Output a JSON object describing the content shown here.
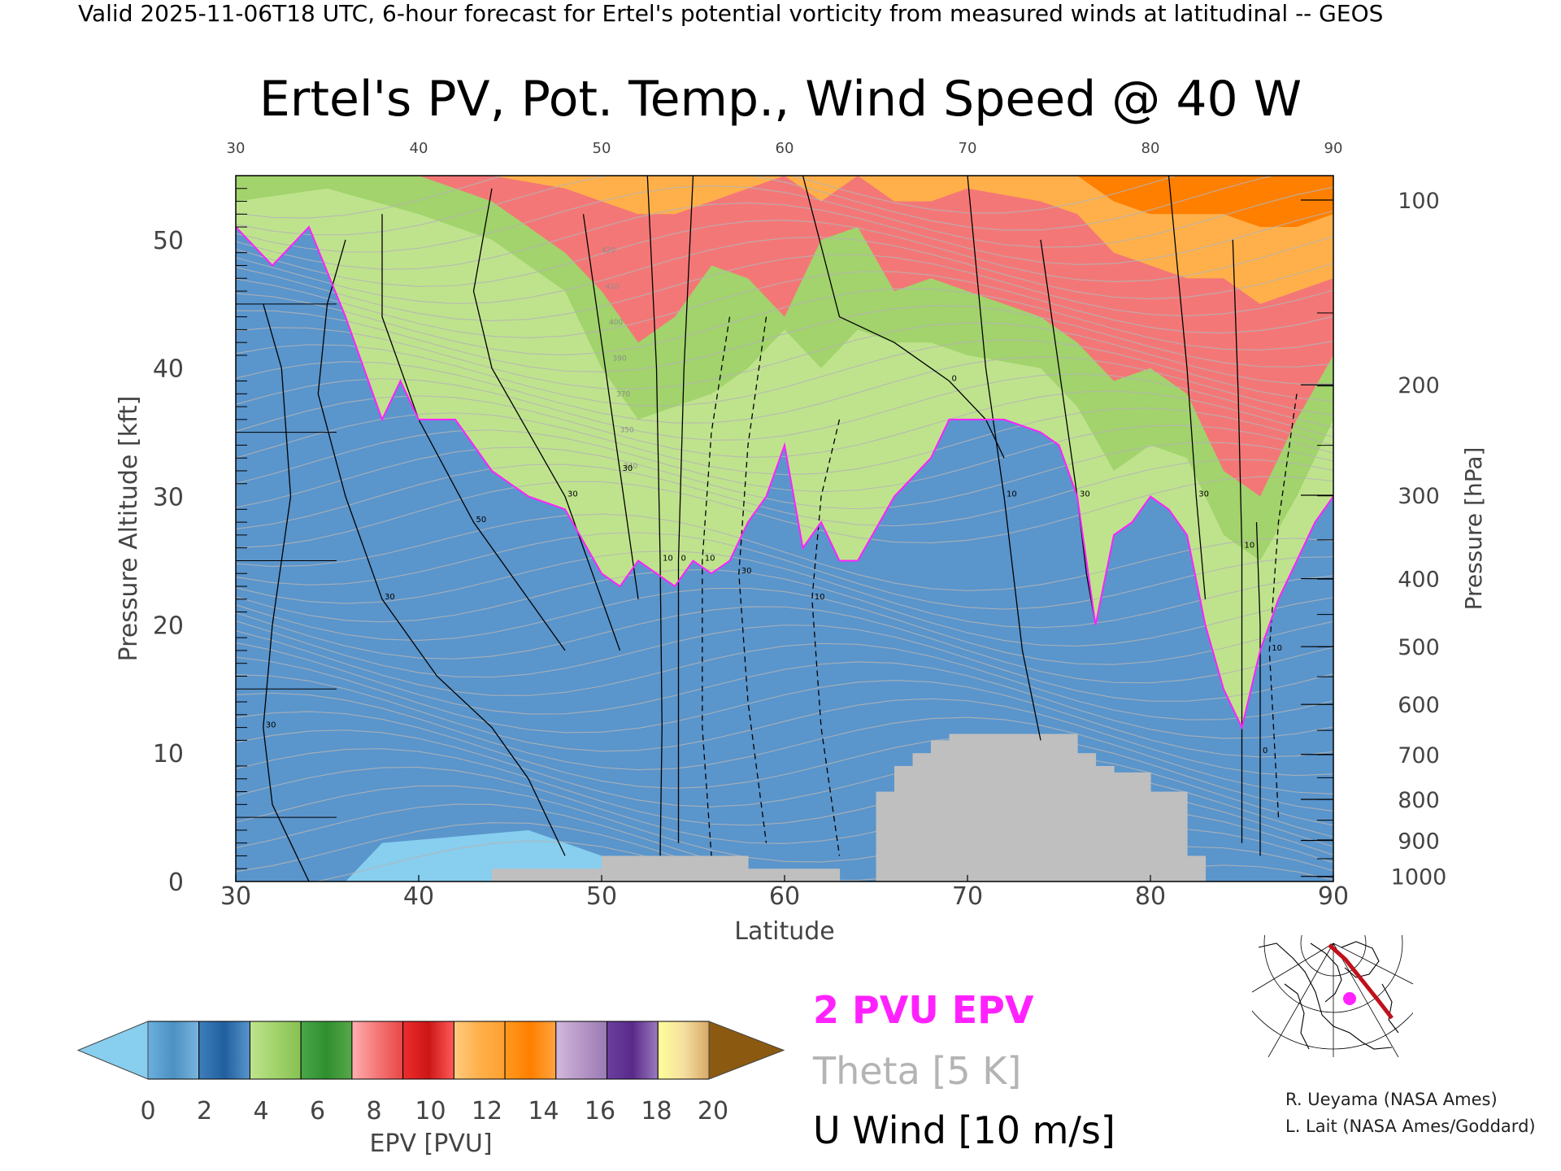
{
  "header": {
    "caption": "Valid 2025-11-06T18 UTC, 6-hour forecast for Ertel's potential vorticity from measured winds at latitudinal -- GEOS"
  },
  "chart_data": {
    "type": "heatmap",
    "title": "Ertel's PV, Pot. Temp., Wind Speed @ 40 W",
    "xlabel": "Latitude",
    "ylabel": "Pressure Altitude [kft]",
    "y2label": "Pressure [hPa]",
    "xlim": [
      30,
      90
    ],
    "ylim": [
      0,
      55
    ],
    "x_ticks": [
      "30",
      "40",
      "50",
      "60",
      "70",
      "80",
      "90"
    ],
    "y_ticks": [
      "0",
      "10",
      "20",
      "30",
      "40",
      "50"
    ],
    "y_tick_values": [
      0,
      10,
      20,
      30,
      40,
      50
    ],
    "pressure_ticks": [
      {
        "label": "100",
        "kft": 53.1
      },
      {
        "label": "200",
        "kft": 38.7
      },
      {
        "label": "300",
        "kft": 30.1
      },
      {
        "label": "400",
        "kft": 23.6
      },
      {
        "label": "500",
        "kft": 18.3
      },
      {
        "label": "600",
        "kft": 13.8
      },
      {
        "label": "700",
        "kft": 9.9
      },
      {
        "label": "800",
        "kft": 6.4
      },
      {
        "label": "900",
        "kft": 3.2
      },
      {
        "label": "1000",
        "kft": 0.4
      }
    ],
    "tropopause_2pvu": {
      "lat": [
        30,
        32,
        34,
        36,
        38,
        39,
        40,
        42,
        44,
        46,
        48,
        50,
        51,
        52,
        53,
        54,
        55,
        56,
        57,
        58,
        59,
        60,
        61,
        62,
        63,
        64,
        66,
        68,
        69,
        70,
        72,
        74,
        75,
        76,
        77,
        78,
        79,
        80,
        81,
        82,
        83,
        84,
        85,
        86,
        87,
        88,
        89,
        90
      ],
      "kft": [
        51,
        48,
        51,
        44,
        36,
        39,
        36,
        36,
        32,
        30,
        29,
        24,
        23,
        25,
        24,
        23,
        25,
        24,
        25,
        28,
        30,
        34,
        26,
        28,
        25,
        25,
        30,
        33,
        36,
        36,
        36,
        35,
        34,
        30,
        20,
        27,
        28,
        30,
        29,
        27,
        20,
        15,
        12,
        18,
        22,
        25,
        28,
        30
      ]
    },
    "epv_field_bands": [
      {
        "lat": [
          30,
          35,
          40,
          44,
          48,
          50,
          52,
          54,
          56,
          58,
          60,
          62,
          64,
          66,
          68,
          70,
          74,
          76,
          78,
          80,
          82,
          84,
          86,
          88,
          90
        ],
        "kft": [
          53,
          54,
          52,
          50,
          46,
          40,
          36,
          37,
          38,
          40,
          43,
          40,
          43,
          42,
          42,
          41,
          40,
          37,
          32,
          34,
          33,
          27,
          25,
          30,
          36
        ],
        "pvu": 5
      },
      {
        "lat": [
          30,
          35,
          40,
          44,
          48,
          50,
          52,
          54,
          56,
          58,
          60,
          62,
          64,
          66,
          68,
          70,
          74,
          76,
          78,
          80,
          82,
          84,
          86,
          88,
          90
        ],
        "kft": [
          55,
          55,
          55,
          53,
          49,
          46,
          42,
          44,
          48,
          47,
          44,
          50,
          51,
          46,
          47,
          46,
          44,
          42,
          39,
          40,
          38,
          32,
          30,
          36,
          41
        ],
        "pvu": 9
      },
      {
        "lat": [
          30,
          35,
          40,
          44,
          48,
          50,
          52,
          54,
          56,
          58,
          60,
          62,
          64,
          66,
          68,
          70,
          74,
          76,
          78,
          80,
          82,
          84,
          86,
          88,
          90
        ],
        "kft": [
          55,
          55,
          55,
          55,
          54,
          53,
          52,
          52,
          53,
          54,
          55,
          53,
          55,
          53,
          53,
          54,
          53,
          52,
          49,
          48,
          47,
          47,
          45,
          46,
          47
        ],
        "pvu": 12
      },
      {
        "lat": [
          30,
          35,
          40,
          44,
          48,
          50,
          52,
          54,
          56,
          58,
          60,
          62,
          64,
          66,
          68,
          70,
          74,
          76,
          78,
          80,
          82,
          84,
          86,
          88,
          90
        ],
        "kft": [
          55,
          55,
          55,
          55,
          55,
          55,
          55,
          55,
          55,
          55,
          55,
          55,
          55,
          55,
          55,
          55,
          55,
          55,
          53,
          52,
          52,
          52,
          51,
          51,
          52
        ],
        "pvu": 15
      }
    ],
    "surface_mask": [
      {
        "lat": [
          44,
          50
        ],
        "kft": 1
      },
      {
        "lat": [
          50,
          58
        ],
        "kft": 2
      },
      {
        "lat": [
          58,
          63
        ],
        "kft": 1
      },
      {
        "lat": [
          65,
          66
        ],
        "kft": 7
      },
      {
        "lat": [
          66,
          67
        ],
        "kft": 9
      },
      {
        "lat": [
          67,
          68
        ],
        "kft": 10
      },
      {
        "lat": [
          68,
          69
        ],
        "kft": 11
      },
      {
        "lat": [
          69,
          76
        ],
        "kft": 11.5
      },
      {
        "lat": [
          76,
          77
        ],
        "kft": 10
      },
      {
        "lat": [
          77,
          78
        ],
        "kft": 9
      },
      {
        "lat": [
          78,
          80
        ],
        "kft": 8.5
      },
      {
        "lat": [
          80,
          82
        ],
        "kft": 7
      },
      {
        "lat": [
          82,
          83
        ],
        "kft": 2
      }
    ],
    "u_wind_contours": [
      {
        "dash": false,
        "label": "30",
        "lat": [
          31.5,
          32.5,
          33,
          32,
          31.5,
          32,
          33,
          34
        ],
        "kft": [
          45,
          40,
          30,
          20,
          12,
          6,
          3,
          0
        ]
      },
      {
        "dash": false,
        "label": "30",
        "lat": [
          36,
          35,
          34.5,
          36,
          38,
          41,
          44,
          46,
          48
        ],
        "kft": [
          50,
          45,
          38,
          30,
          22,
          16,
          12,
          8,
          2
        ]
      },
      {
        "dash": false,
        "label": "50",
        "lat": [
          38,
          38,
          40,
          43,
          46,
          48
        ],
        "kft": [
          52,
          44,
          36,
          28,
          22,
          18
        ]
      },
      {
        "dash": false,
        "label": "30",
        "lat": [
          44,
          43,
          44,
          46,
          48,
          49,
          50,
          51
        ],
        "kft": [
          54,
          46,
          40,
          35,
          30,
          26,
          22,
          18
        ]
      },
      {
        "dash": false,
        "label": "30",
        "lat": [
          49,
          50,
          51,
          52
        ],
        "kft": [
          52,
          42,
          32,
          22
        ]
      },
      {
        "dash": false,
        "label": "10",
        "lat": [
          52.5,
          53,
          53.2,
          53.3,
          53.2
        ],
        "kft": [
          55,
          40,
          25,
          12,
          2
        ]
      },
      {
        "dash": false,
        "label": "0",
        "lat": [
          55,
          54.5,
          54.2,
          54.2
        ],
        "kft": [
          55,
          40,
          25,
          3
        ]
      },
      {
        "dash": true,
        "label": "10",
        "lat": [
          57,
          56,
          55.5,
          55.5,
          56
        ],
        "kft": [
          44,
          35,
          25,
          12,
          2
        ]
      },
      {
        "dash": true,
        "label": "30",
        "lat": [
          59,
          58,
          57.5,
          58,
          59
        ],
        "kft": [
          44,
          34,
          24,
          14,
          3
        ]
      },
      {
        "dash": true,
        "label": "10",
        "lat": [
          63,
          62,
          61.5,
          62,
          63
        ],
        "kft": [
          36,
          30,
          22,
          12,
          2
        ]
      },
      {
        "dash": false,
        "label": "0",
        "lat": [
          61,
          63,
          66,
          69,
          71,
          72
        ],
        "kft": [
          55,
          44,
          42,
          39,
          36,
          33
        ]
      },
      {
        "dash": false,
        "label": "10",
        "lat": [
          70,
          71,
          72,
          73,
          74
        ],
        "kft": [
          55,
          40,
          30,
          18,
          11
        ]
      },
      {
        "dash": false,
        "label": "30",
        "lat": [
          74,
          75,
          76,
          76.5,
          77
        ],
        "kft": [
          50,
          40,
          30,
          24,
          20
        ]
      },
      {
        "dash": false,
        "label": "30",
        "lat": [
          81,
          82,
          82.5,
          83
        ],
        "kft": [
          55,
          40,
          30,
          22
        ]
      },
      {
        "dash": false,
        "label": "10",
        "lat": [
          84.5,
          84.8,
          85,
          85,
          85
        ],
        "kft": [
          50,
          38,
          26,
          14,
          3
        ]
      },
      {
        "dash": true,
        "label": "10",
        "lat": [
          88,
          87,
          86.5,
          87
        ],
        "kft": [
          38,
          28,
          18,
          5
        ]
      },
      {
        "dash": false,
        "label": "0",
        "lat": [
          85.8,
          86,
          86,
          86
        ],
        "kft": [
          28,
          20,
          10,
          2
        ]
      }
    ],
    "theta_contour_labels": [
      "420",
      "410",
      "400",
      "390",
      "370",
      "350",
      "340"
    ],
    "legend": [
      "2 PVU EPV",
      "Theta [5 K]",
      "U Wind [10 m/s]"
    ],
    "legend_colors": {
      "epv_2pvu": "#ff22ff",
      "theta": "#b4b4b4",
      "u_wind": "#000000"
    },
    "colorbar": {
      "label": "EPV [PVU]",
      "ticks": [
        "0",
        "2",
        "4",
        "6",
        "8",
        "10",
        "12",
        "14",
        "16",
        "18",
        "20"
      ],
      "under_color": "#87ceef",
      "over_color": "#8b5a10",
      "segments": [
        [
          "#6ab0dd",
          "#4d90c3",
          "#7ab6de"
        ],
        [
          "#3e7fbb",
          "#1f5f9f",
          "#5a95cc"
        ],
        [
          "#bfe38d",
          "#a2d36c",
          "#86c152"
        ],
        [
          "#4aa64a",
          "#2f8f2f",
          "#57a84a"
        ],
        [
          "#ffb0b0",
          "#f47777",
          "#e84747"
        ],
        [
          "#ee2d2d",
          "#cc1616",
          "#ff5a5a"
        ],
        [
          "#ffcb80",
          "#ffb04a",
          "#ffa030"
        ],
        [
          "#ff9a20",
          "#ff7f00",
          "#ffa540"
        ],
        [
          "#d3b8dc",
          "#b697c6",
          "#9a7bb4"
        ],
        [
          "#6a3f9e",
          "#5a2a8a",
          "#9b7bbf"
        ],
        [
          "#ffff99",
          "#f5e0a0",
          "#d8a868"
        ]
      ]
    },
    "grid": false
  },
  "inset_map": {
    "label": "40 W latitude cross-section locator",
    "line_color": "#c0111a",
    "dot_color": "#ff22ff"
  },
  "credits": {
    "line1": "R. Ueyama (NASA Ames)",
    "line2": "L. Lait (NASA Ames/Goddard)"
  }
}
